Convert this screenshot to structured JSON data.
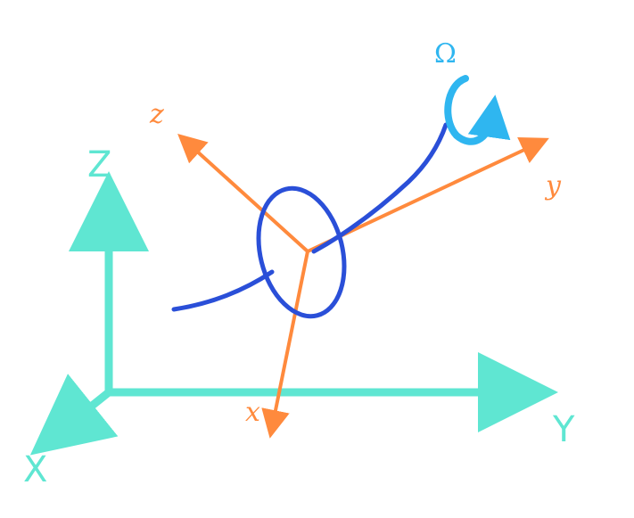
{
  "colors": {
    "world_axes": "#5fe6d2",
    "body_axes": "#ff8a3d",
    "object": "#2a4fd8",
    "omega": "#2fb6f0",
    "background": "#ffffff"
  },
  "world_axes": {
    "x_label": "X",
    "y_label": "Y",
    "z_label": "Z"
  },
  "body_axes": {
    "x_label": "x",
    "y_label": "y",
    "z_label": "z"
  },
  "rotation": {
    "label": "Ω",
    "icon": "curved-rotation-arrow-icon"
  }
}
